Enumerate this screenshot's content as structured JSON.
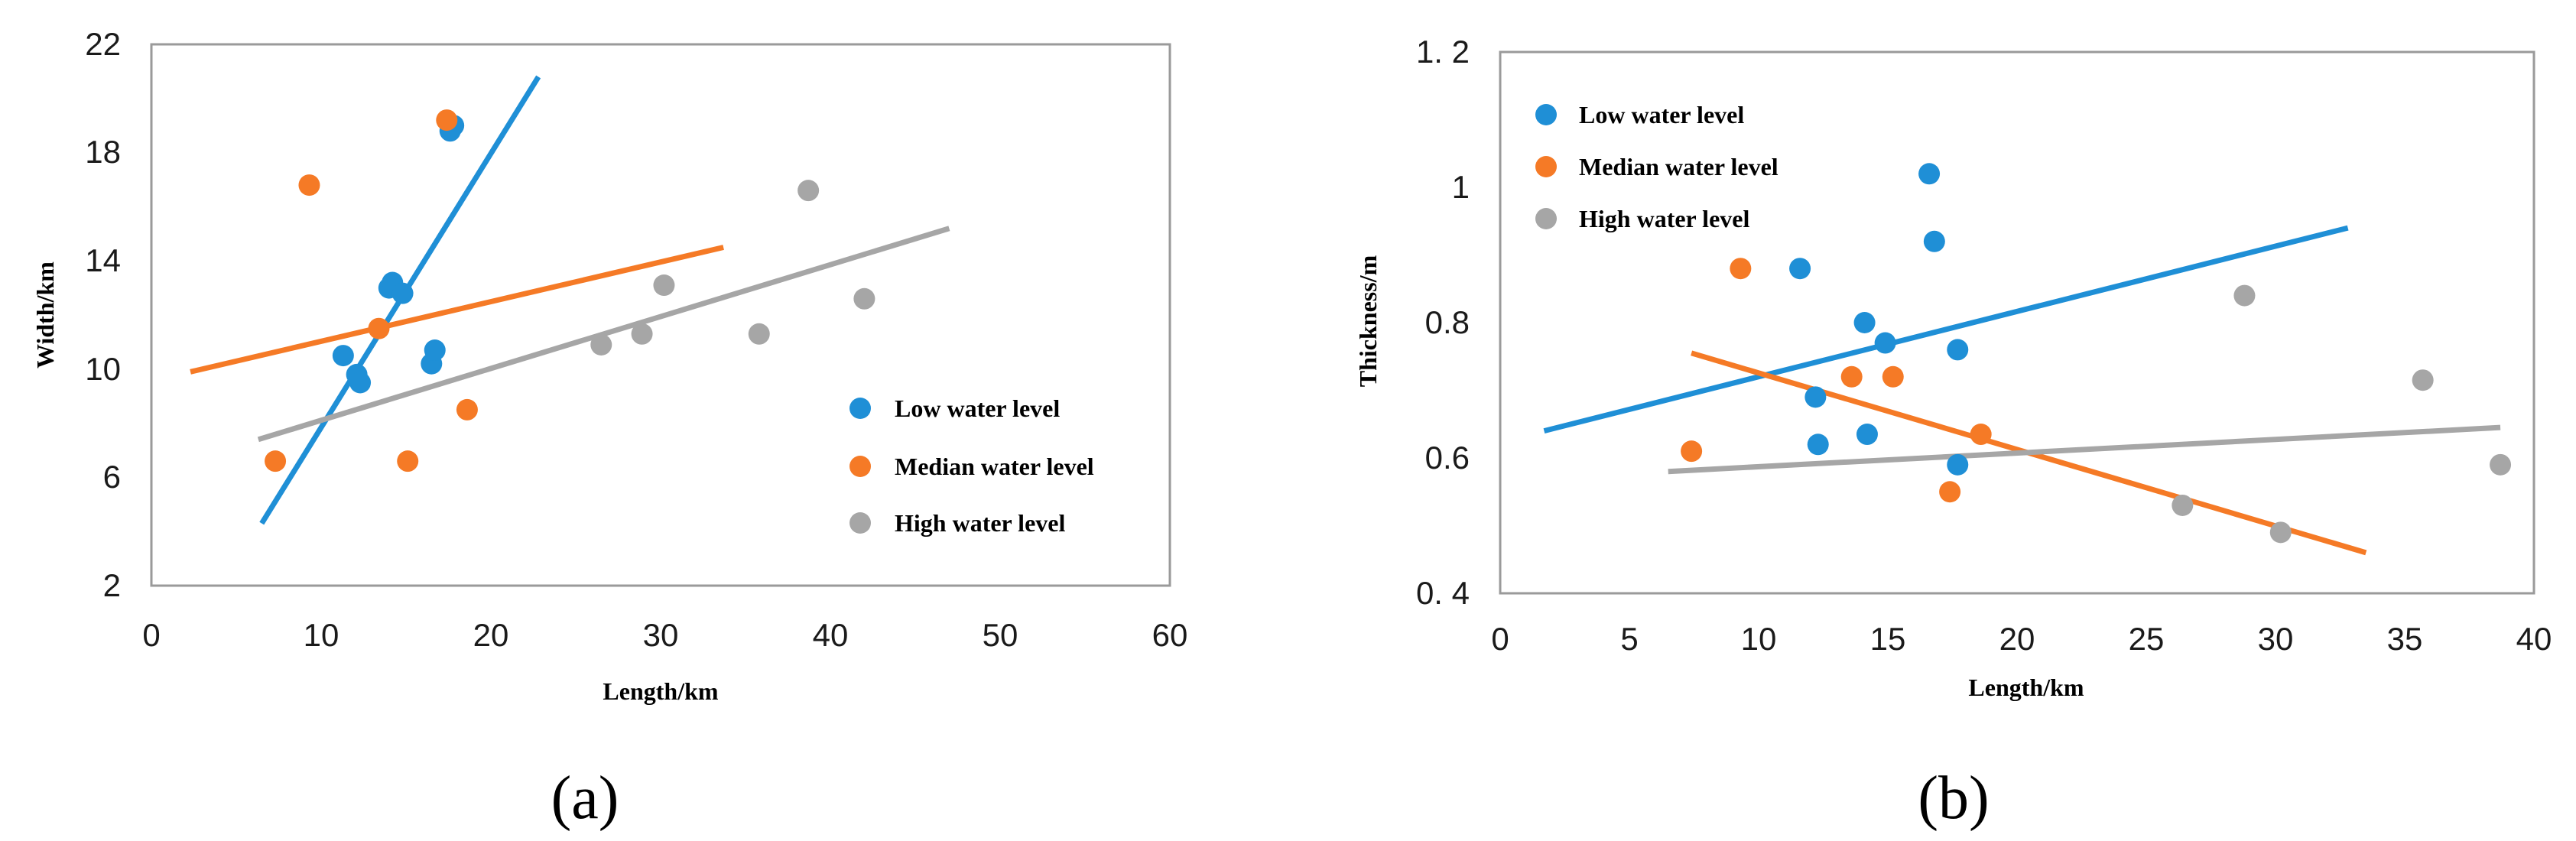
{
  "colors": {
    "low": "#1f8fd6",
    "median": "#f57a26",
    "high": "#a6a6a6",
    "frame": "#9a9a9a"
  },
  "chart_data": [
    {
      "type": "scatter",
      "panel_label": "(a)",
      "xlabel": "Length/km",
      "ylabel": "Width/km",
      "xlim": [
        0,
        60
      ],
      "ylim": [
        2,
        22
      ],
      "x_ticks": [
        0,
        10,
        20,
        30,
        40,
        50,
        60
      ],
      "y_ticks": [
        2,
        6,
        10,
        14,
        18,
        22
      ],
      "x_tick_labels": [
        "0",
        "10",
        "20",
        "30",
        "40",
        "50",
        "60"
      ],
      "y_tick_labels": [
        "2",
        "6",
        "10",
        "14",
        "18",
        "22"
      ],
      "legend_position": "bottom-right",
      "series": [
        {
          "name": "Low water level",
          "color_key": "low",
          "points": [
            [
              11.3,
              10.5
            ],
            [
              12.1,
              9.8
            ],
            [
              12.3,
              9.5
            ],
            [
              14.0,
              13.0
            ],
            [
              14.2,
              13.2
            ],
            [
              14.8,
              12.8
            ],
            [
              16.5,
              10.2
            ],
            [
              16.7,
              10.7
            ],
            [
              17.6,
              18.8
            ],
            [
              17.8,
              19.0
            ]
          ],
          "trend": [
            [
              6.5,
              4.3
            ],
            [
              22.8,
              20.8
            ]
          ]
        },
        {
          "name": "Median water level",
          "color_key": "median",
          "points": [
            [
              7.3,
              6.6
            ],
            [
              9.3,
              16.8
            ],
            [
              13.4,
              11.5
            ],
            [
              15.1,
              6.6
            ],
            [
              17.4,
              19.2
            ],
            [
              18.6,
              8.5
            ]
          ],
          "trend": [
            [
              2.3,
              9.9
            ],
            [
              33.7,
              14.5
            ]
          ]
        },
        {
          "name": "High water level",
          "color_key": "high",
          "points": [
            [
              26.5,
              10.9
            ],
            [
              28.9,
              11.3
            ],
            [
              30.2,
              13.1
            ],
            [
              35.8,
              11.3
            ],
            [
              38.7,
              16.6
            ],
            [
              42.0,
              12.6
            ]
          ],
          "trend": [
            [
              6.3,
              7.4
            ],
            [
              47.0,
              15.2
            ]
          ]
        }
      ]
    },
    {
      "type": "scatter",
      "panel_label": "(b)",
      "xlabel": "Length/km",
      "ylabel": "Thickness/m",
      "xlim": [
        0,
        40
      ],
      "ylim": [
        0.4,
        1.2
      ],
      "x_ticks": [
        0,
        5,
        10,
        15,
        20,
        25,
        30,
        35,
        40
      ],
      "y_ticks": [
        0.4,
        0.6,
        0.8,
        1.0,
        1.2
      ],
      "x_tick_labels": [
        "0",
        "5",
        "10",
        "15",
        "20",
        "25",
        "30",
        "35",
        "40"
      ],
      "y_tick_labels": [
        "0. 4",
        "0.6",
        "0.8",
        "1",
        "1. 2"
      ],
      "legend_position": "top-left",
      "series": [
        {
          "name": "Low water level",
          "color_key": "low",
          "points": [
            [
              11.6,
              0.88
            ],
            [
              12.2,
              0.69
            ],
            [
              12.3,
              0.62
            ],
            [
              14.1,
              0.8
            ],
            [
              14.2,
              0.635
            ],
            [
              14.9,
              0.77
            ],
            [
              16.6,
              1.02
            ],
            [
              16.8,
              0.92
            ],
            [
              17.7,
              0.76
            ],
            [
              17.7,
              0.59
            ]
          ],
          "trend": [
            [
              1.7,
              0.64
            ],
            [
              32.8,
              0.94
            ]
          ]
        },
        {
          "name": "Median water level",
          "color_key": "median",
          "points": [
            [
              7.4,
              0.61
            ],
            [
              9.3,
              0.88
            ],
            [
              13.6,
              0.72
            ],
            [
              15.2,
              0.72
            ],
            [
              17.4,
              0.55
            ],
            [
              18.6,
              0.635
            ]
          ],
          "trend": [
            [
              7.4,
              0.755
            ],
            [
              33.5,
              0.46
            ]
          ]
        },
        {
          "name": "High water level",
          "color_key": "high",
          "points": [
            [
              26.4,
              0.53
            ],
            [
              28.8,
              0.84
            ],
            [
              30.2,
              0.49
            ],
            [
              35.7,
              0.715
            ],
            [
              38.7,
              0.59
            ]
          ],
          "trend": [
            [
              6.5,
              0.58
            ],
            [
              38.7,
              0.645
            ]
          ]
        }
      ]
    }
  ]
}
